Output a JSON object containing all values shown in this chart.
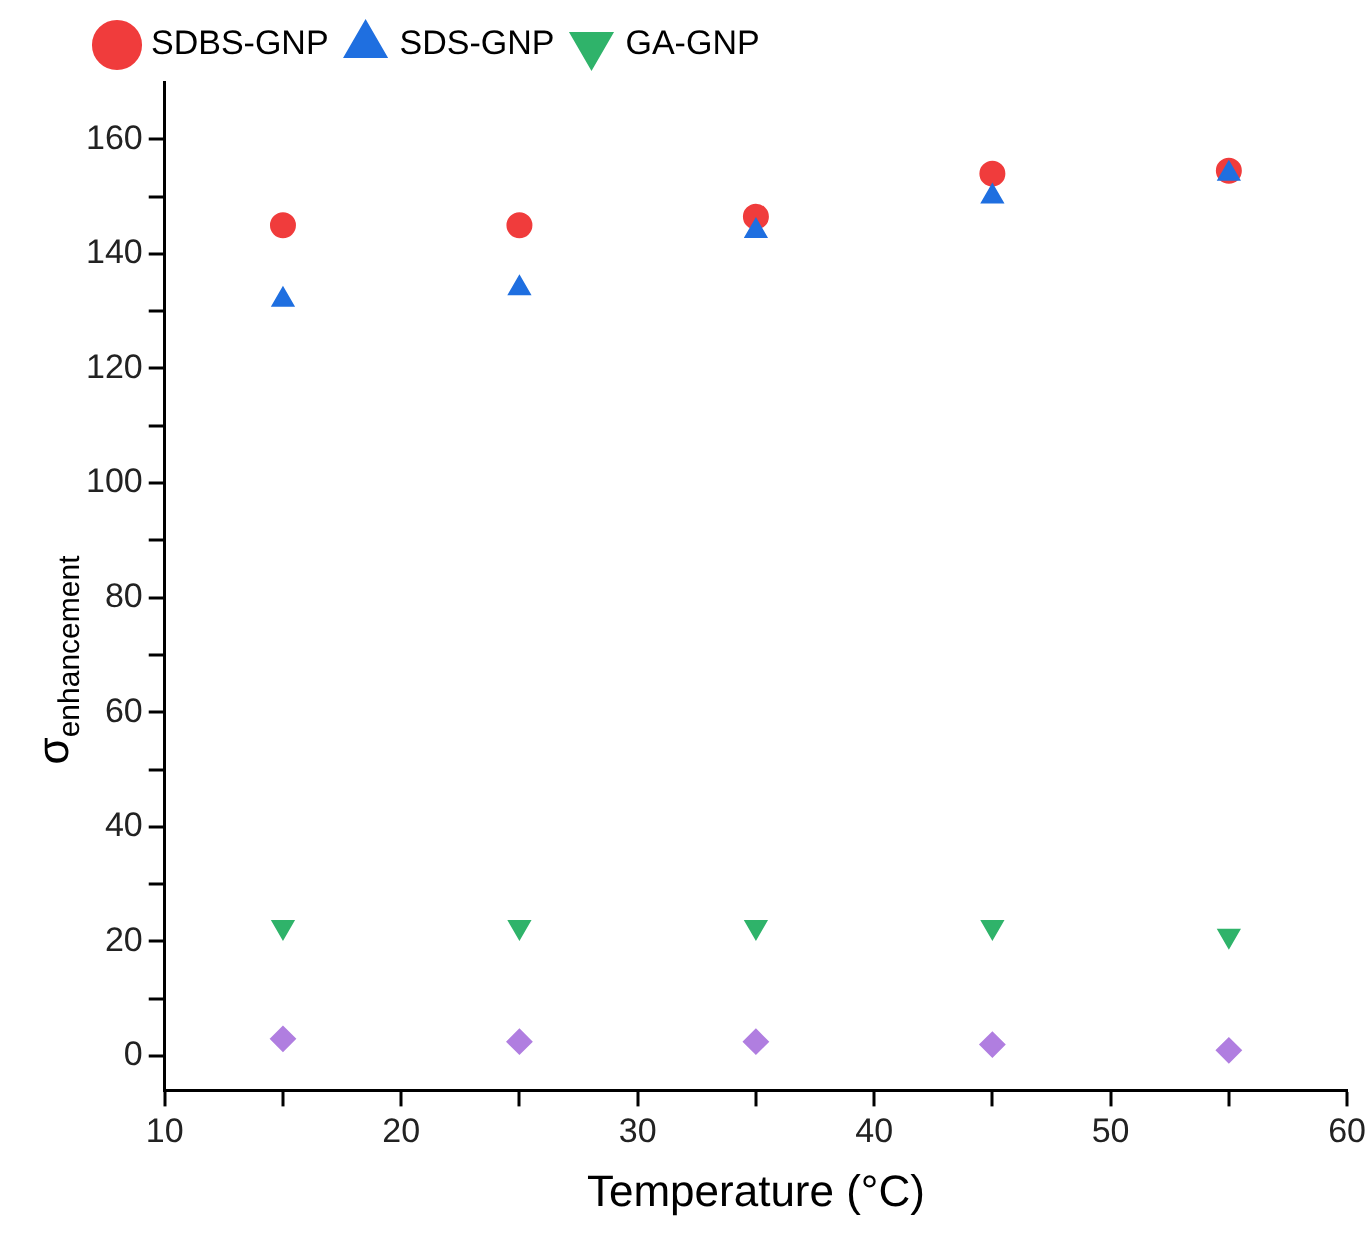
{
  "chart_data": {
    "type": "scatter",
    "xlabel": "Temperature (°C)",
    "ylabel": "σ$_{enhancement}$",
    "x": [
      15,
      25,
      35,
      45,
      55
    ],
    "series": [
      {
        "name": "SDBS-GNP",
        "color": "#f03c3c",
        "marker": "circle",
        "values": [
          145,
          145,
          146.5,
          154,
          154.5
        ]
      },
      {
        "name": "SDS-GNP",
        "color": "#1f6fe0",
        "marker": "triangle",
        "values": [
          132,
          134,
          144,
          150,
          154
        ]
      },
      {
        "name": "GA-GNP",
        "color": "#2fb36a",
        "marker": "triangle-down",
        "values": [
          22.5,
          22.5,
          22.5,
          22.5,
          21
        ]
      },
      {
        "color": "#b07ee0",
        "marker": "diamond",
        "values": [
          3,
          2.5,
          2.5,
          2,
          1
        ]
      }
    ],
    "xlim": [
      10,
      60
    ],
    "xticks": [
      10,
      {
        "value": 15,
        "label": null
      },
      20,
      {
        "value": 25,
        "label": null
      },
      30,
      {
        "value": 35,
        "label": null
      },
      40,
      {
        "value": 45,
        "label": null
      },
      50,
      {
        "value": 55,
        "label": null
      },
      60
    ],
    "ylim": [
      -6,
      170
    ],
    "yticks": [
      0,
      {
        "value": 10,
        "label": null
      },
      20,
      {
        "value": 30,
        "label": null
      },
      40,
      {
        "value": 50,
        "label": null
      },
      60,
      {
        "value": 70,
        "label": null
      },
      80,
      {
        "value": 90,
        "label": null
      },
      100,
      {
        "value": 110,
        "label": null
      },
      120,
      {
        "value": 130,
        "label": null
      },
      140,
      {
        "value": 150,
        "label": null
      },
      160
    ],
    "grid": false,
    "legend": "top left"
  }
}
